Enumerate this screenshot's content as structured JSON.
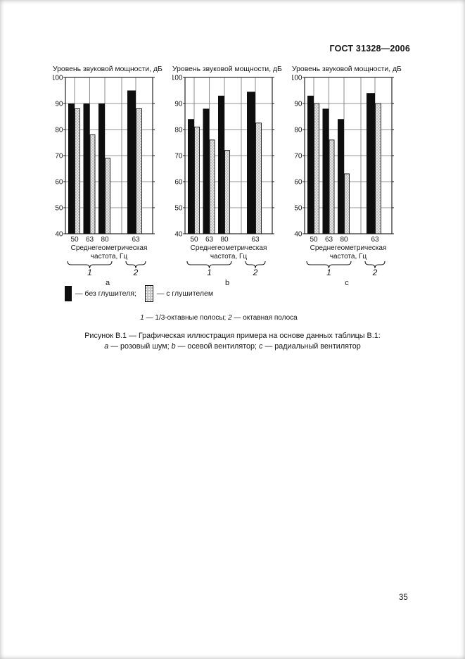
{
  "page": {
    "header_title": "ГОСТ 31328—2006",
    "page_number": "35"
  },
  "figure": {
    "legend": {
      "without_label": "— без глушителя;",
      "with_label": "— с глушителем"
    },
    "footnote_segments": [
      {
        "text": "1",
        "italic": true
      },
      {
        "text": " — 1/3-октавные полосы; ",
        "italic": false
      },
      {
        "text": "2",
        "italic": true
      },
      {
        "text": " — октавная полоса",
        "italic": false
      }
    ],
    "caption_line1": "Рисунок В.1 — Графическая иллюстрация примера на основе данных таблицы В.1:",
    "caption_line2_segments": [
      {
        "text": "а",
        "italic": true
      },
      {
        "text": " — розовый шум; ",
        "italic": false
      },
      {
        "text": "b",
        "italic": true
      },
      {
        "text": " — осевой вентилятор; ",
        "italic": false
      },
      {
        "text": "с",
        "italic": true
      },
      {
        "text": " — радиальный вентилятор",
        "italic": false
      }
    ]
  },
  "colors": {
    "bar_without_silencer": "#0e0e0e",
    "bar_with_silencer": "#c4c4c4",
    "grid": "#6f6f6f",
    "text": "#161616"
  },
  "chart_data": [
    {
      "type": "bar",
      "subfigure_letter": "а",
      "description": "розовый шум",
      "title": "Уровень звуковой мощности, дБ",
      "ylabel": "Уровень звуковой мощности, дБ",
      "ylim": [
        40,
        100
      ],
      "ytick_step": 10,
      "grid": true,
      "categories": [
        "50",
        "63",
        "80",
        "63"
      ],
      "xlabel_line1": "Среднегеометрическая",
      "xlabel_line2": "частота, Гц",
      "band_group_labels": {
        "third_octave_bands": "1",
        "octave_band": "2"
      },
      "series": [
        {
          "name": "без глушителя",
          "values": [
            90,
            90,
            90,
            95
          ]
        },
        {
          "name": "с глушителем",
          "values": [
            88,
            78,
            69,
            88
          ]
        }
      ]
    },
    {
      "type": "bar",
      "subfigure_letter": "b",
      "description": "осевой вентилятор",
      "title": "Уровень звуковой мощности, дБ",
      "ylabel": "Уровень звуковой мощности, дБ",
      "ylim": [
        40,
        100
      ],
      "ytick_step": 10,
      "grid": true,
      "categories": [
        "50",
        "63",
        "80",
        "63"
      ],
      "xlabel_line1": "Среднегеометрическая",
      "xlabel_line2": "частота, Гц",
      "band_group_labels": {
        "third_octave_bands": "1",
        "octave_band": "2"
      },
      "series": [
        {
          "name": "без глушителя",
          "values": [
            84,
            88,
            93,
            94.5
          ]
        },
        {
          "name": "с глушителем",
          "values": [
            81,
            76,
            72,
            82.5
          ]
        }
      ]
    },
    {
      "type": "bar",
      "subfigure_letter": "с",
      "description": "радиальный вентилятор",
      "title": "Уровень звуковой мощности, дБ",
      "ylabel": "Уровень звуковой мощности, дБ",
      "ylim": [
        40,
        100
      ],
      "ytick_step": 10,
      "grid": true,
      "categories": [
        "50",
        "63",
        "80",
        "63"
      ],
      "xlabel_line1": "Среднегеометрическая",
      "xlabel_line2": "частота, Гц",
      "band_group_labels": {
        "third_octave_bands": "1",
        "octave_band": "2"
      },
      "series": [
        {
          "name": "без глушителя",
          "values": [
            93,
            88,
            84,
            94
          ]
        },
        {
          "name": "с глушителем",
          "values": [
            90,
            76,
            63,
            90
          ]
        }
      ]
    }
  ]
}
